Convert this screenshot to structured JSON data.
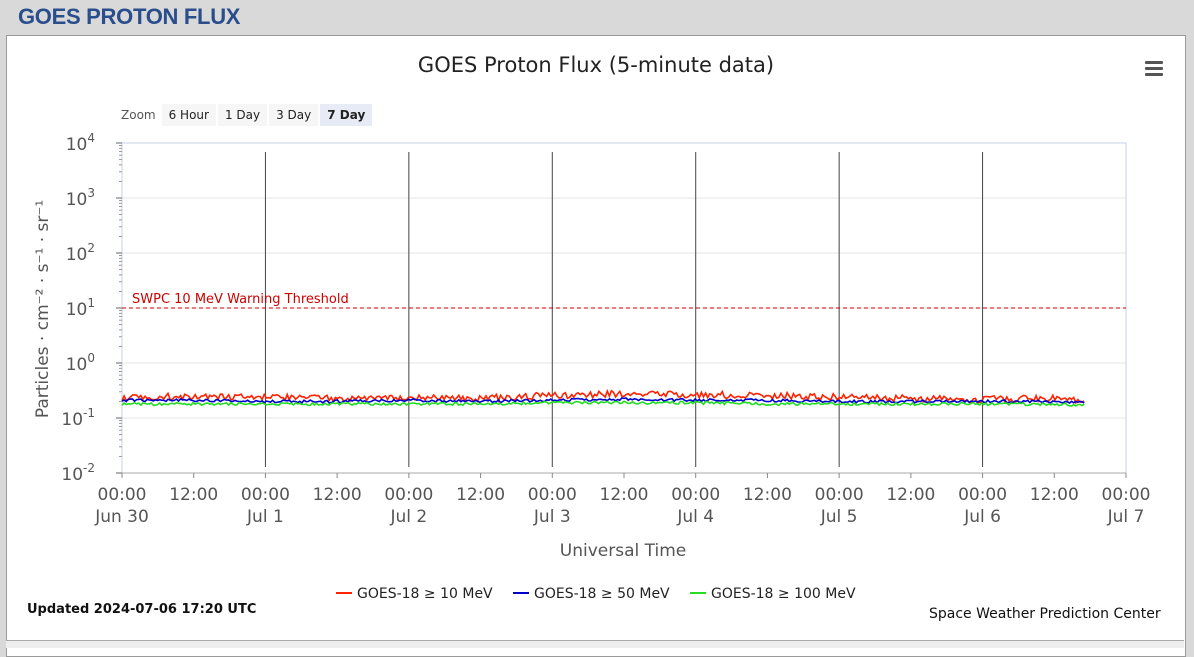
{
  "page": {
    "heading": "GOES PROTON FLUX"
  },
  "zoom": {
    "label": "Zoom",
    "buttons": [
      "6 Hour",
      "1 Day",
      "3 Day",
      "7 Day"
    ],
    "active": "7 Day"
  },
  "footer": {
    "updated": "Updated 2024-07-06 17:20 UTC",
    "credit": "Space Weather Prediction Center"
  },
  "chart_data": {
    "type": "line",
    "title": "GOES Proton Flux (5-minute data)",
    "xlabel": "Universal Time",
    "ylabel": "Particles · cm⁻² · s⁻¹ · sr⁻¹",
    "y_scale": "log",
    "ylim": [
      0.01,
      10000
    ],
    "y_ticks": [
      {
        "base": "10",
        "exp": "-2",
        "value": 0.01
      },
      {
        "base": "10",
        "exp": "-1",
        "value": 0.1
      },
      {
        "base": "10",
        "exp": "0",
        "value": 1
      },
      {
        "base": "10",
        "exp": "1",
        "value": 10
      },
      {
        "base": "10",
        "exp": "2",
        "value": 100
      },
      {
        "base": "10",
        "exp": "3",
        "value": 1000
      },
      {
        "base": "10",
        "exp": "4",
        "value": 10000
      }
    ],
    "xlim": [
      "2024-06-30 00:00",
      "2024-07-07 00:00"
    ],
    "x_ticks": [
      {
        "time": "00:00",
        "date": "Jun 30",
        "hours": 0
      },
      {
        "time": "12:00",
        "date": "",
        "hours": 12
      },
      {
        "time": "00:00",
        "date": "Jul 1",
        "hours": 24
      },
      {
        "time": "12:00",
        "date": "",
        "hours": 36
      },
      {
        "time": "00:00",
        "date": "Jul 2",
        "hours": 48
      },
      {
        "time": "12:00",
        "date": "",
        "hours": 60
      },
      {
        "time": "00:00",
        "date": "Jul 3",
        "hours": 72
      },
      {
        "time": "12:00",
        "date": "",
        "hours": 84
      },
      {
        "time": "00:00",
        "date": "Jul 4",
        "hours": 96
      },
      {
        "time": "12:00",
        "date": "",
        "hours": 108
      },
      {
        "time": "00:00",
        "date": "Jul 5",
        "hours": 120
      },
      {
        "time": "12:00",
        "date": "",
        "hours": 132
      },
      {
        "time": "00:00",
        "date": "Jul 6",
        "hours": 144
      },
      {
        "time": "12:00",
        "date": "",
        "hours": 156
      },
      {
        "time": "00:00",
        "date": "Jul 7",
        "hours": 168
      }
    ],
    "day_lines_hours": [
      24,
      48,
      72,
      96,
      120,
      144
    ],
    "threshold": {
      "label": "SWPC 10 MeV Warning Threshold",
      "value": 10,
      "color": "#cc0000"
    },
    "grid": true,
    "legend_position": "bottom-center",
    "series": [
      {
        "name": "GOES-18 ≥ 10 MeV",
        "color": "#ff2200",
        "x_hours": [
          0,
          12,
          24,
          36,
          48,
          60,
          72,
          84,
          96,
          108,
          120,
          132,
          144,
          156,
          161.3
        ],
        "values": [
          0.24,
          0.25,
          0.24,
          0.23,
          0.24,
          0.23,
          0.26,
          0.28,
          0.27,
          0.26,
          0.24,
          0.23,
          0.22,
          0.23,
          0.2
        ]
      },
      {
        "name": "GOES-18 ≥ 50 MeV",
        "color": "#0000cc",
        "x_hours": [
          0,
          12,
          24,
          36,
          48,
          60,
          72,
          84,
          96,
          108,
          120,
          132,
          144,
          156,
          161.3
        ],
        "values": [
          0.21,
          0.21,
          0.2,
          0.2,
          0.21,
          0.2,
          0.21,
          0.22,
          0.21,
          0.21,
          0.2,
          0.2,
          0.2,
          0.2,
          0.19
        ]
      },
      {
        "name": "GOES-18 ≥ 100 MeV",
        "color": "#22dd22",
        "x_hours": [
          0,
          12,
          24,
          36,
          48,
          60,
          72,
          84,
          96,
          108,
          120,
          132,
          144,
          156,
          161.3
        ],
        "values": [
          0.18,
          0.18,
          0.18,
          0.18,
          0.18,
          0.18,
          0.19,
          0.19,
          0.19,
          0.18,
          0.18,
          0.18,
          0.18,
          0.18,
          0.17
        ]
      }
    ]
  }
}
